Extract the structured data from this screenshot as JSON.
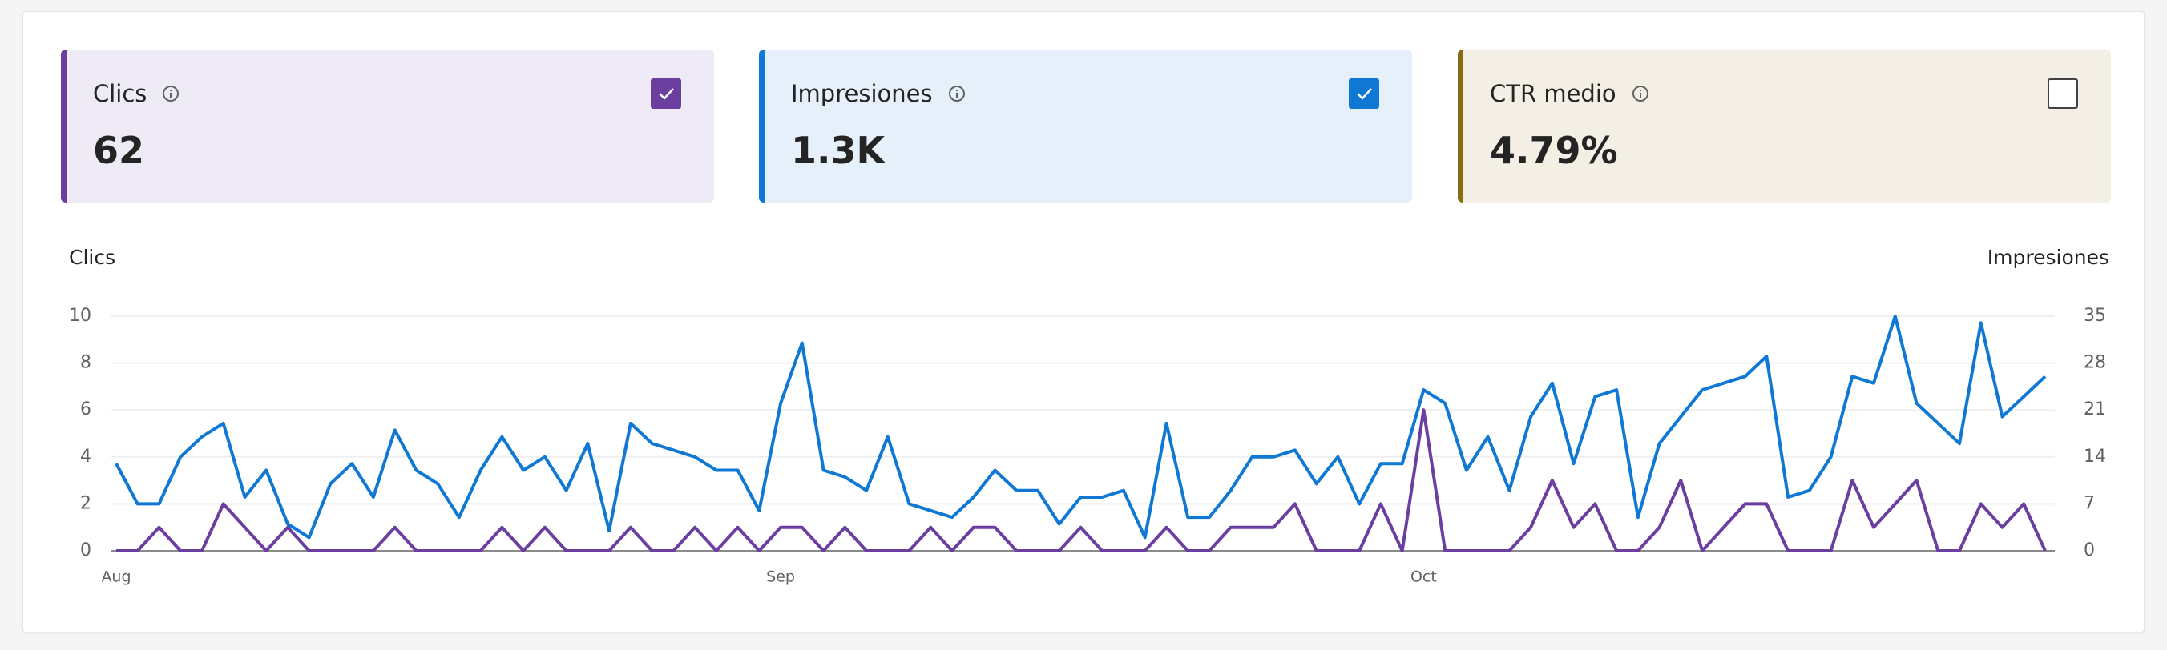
{
  "cards": [
    {
      "label": "Clics",
      "value": "62",
      "checked": true,
      "color": "#6b3fa0",
      "background": "#efebf6"
    },
    {
      "label": "Impresiones",
      "value": "1.3K",
      "checked": true,
      "color": "#0f78d4",
      "background": "#e6f0fb"
    },
    {
      "label": "CTR medio",
      "value": "4.79%",
      "checked": false,
      "color": "#8a6a13",
      "background": "#f3efe4"
    }
  ],
  "chart_data": {
    "type": "line",
    "categories": [
      "Aug",
      null,
      null,
      null,
      null,
      null,
      null,
      null,
      null,
      null,
      null,
      null,
      null,
      null,
      null,
      null,
      null,
      null,
      null,
      null,
      null,
      null,
      null,
      null,
      null,
      null,
      null,
      null,
      null,
      null,
      null,
      "Sep",
      null,
      null,
      null,
      null,
      null,
      null,
      null,
      null,
      null,
      null,
      null,
      null,
      null,
      null,
      null,
      null,
      null,
      null,
      null,
      null,
      null,
      null,
      null,
      null,
      null,
      null,
      null,
      null,
      null,
      "Oct",
      null,
      null,
      null,
      null,
      null,
      null,
      null,
      null,
      null,
      null,
      null,
      null,
      null,
      null,
      null,
      null,
      null,
      null,
      null,
      null,
      null,
      null,
      null,
      null,
      null,
      null,
      null,
      null,
      null
    ],
    "series": [
      {
        "name": "Clics",
        "color": "#6b3fa0",
        "values": [
          0,
          0,
          1,
          0,
          0,
          2,
          1,
          0,
          1,
          0,
          0,
          0,
          0,
          1,
          0,
          0,
          0,
          0,
          1,
          0,
          1,
          0,
          0,
          0,
          1,
          0,
          0,
          1,
          0,
          1,
          0,
          1,
          1,
          0,
          1,
          0,
          0,
          0,
          1,
          0,
          1,
          1,
          0,
          0,
          0,
          1,
          0,
          0,
          0,
          1,
          0,
          0,
          1,
          1,
          1,
          2,
          0,
          0,
          0,
          2,
          0,
          6,
          0,
          0,
          0,
          0,
          1,
          3,
          1,
          2,
          0,
          0,
          1,
          3,
          0,
          1,
          2,
          2,
          0,
          0,
          0,
          3,
          1,
          2,
          3,
          0,
          0,
          2,
          1,
          2,
          0
        ]
      },
      {
        "name": "Impresiones",
        "color": "#0f78d4",
        "axis": "y2",
        "values": [
          13,
          7,
          7,
          14,
          17,
          19,
          8,
          12,
          4,
          2,
          10,
          13,
          8,
          18,
          12,
          10,
          5,
          12,
          17,
          12,
          14,
          9,
          16,
          3,
          19,
          16,
          15,
          14,
          12,
          12,
          6,
          22,
          31,
          12,
          11,
          9,
          17,
          7,
          6,
          5,
          8,
          12,
          9,
          9,
          4,
          8,
          8,
          9,
          2,
          19,
          5,
          5,
          9,
          14,
          14,
          15,
          10,
          14,
          7,
          13,
          13,
          24,
          22,
          12,
          17,
          9,
          20,
          25,
          13,
          23,
          24,
          5,
          16,
          20,
          24,
          25,
          26,
          29,
          8,
          9,
          14,
          26,
          25,
          35,
          22,
          19,
          16,
          34,
          20,
          23,
          26
        ]
      }
    ],
    "ylim": [
      0,
      10
    ],
    "yticks": [
      0,
      2,
      4,
      6,
      8,
      10
    ],
    "y2lim": [
      0,
      35
    ],
    "y2ticks": [
      0,
      7,
      14,
      21,
      28,
      35
    ],
    "grid": true
  }
}
